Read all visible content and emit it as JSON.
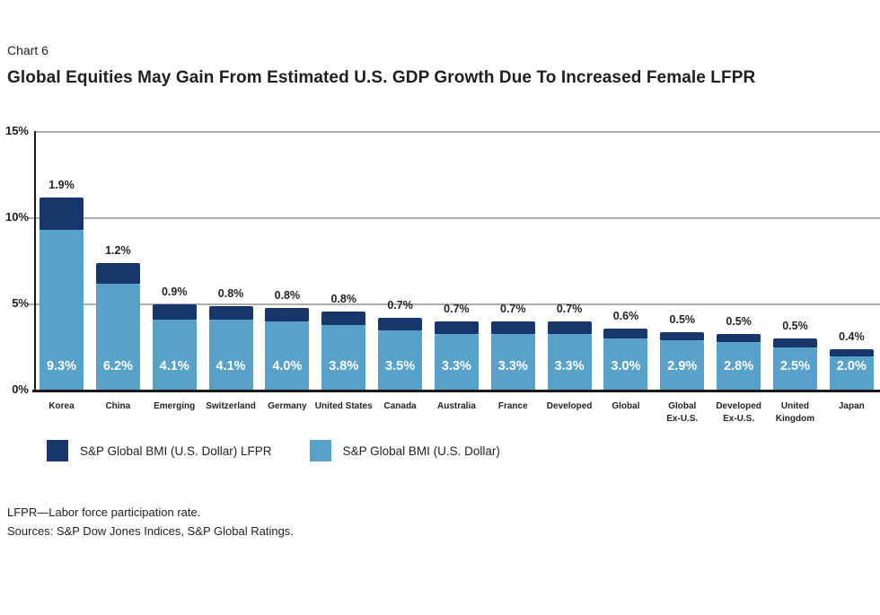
{
  "header": {
    "chart_label": "Chart 6",
    "title": "Global Equities May Gain From Estimated U.S. GDP Growth Due To Increased Female LFPR"
  },
  "chart_data": {
    "type": "bar",
    "stacked": true,
    "title": "Global Equities May Gain From Estimated U.S. GDP Growth Due To Increased Female LFPR",
    "categories": [
      "Korea",
      "China",
      "Emerging",
      "Switzerland",
      "Germany",
      "United States",
      "Canada",
      "Australia",
      "France",
      "Developed",
      "Global",
      "Global Ex-U.S.",
      "Developed Ex-U.S.",
      "United Kingdom",
      "Japan"
    ],
    "category_labels": [
      "Korea",
      "China",
      "Emerging",
      "Switzerland",
      "Germany",
      "United States",
      "Canada",
      "Australia",
      "France",
      "Developed",
      "Global",
      "Global\nEx-U.S.",
      "Developed\nEx-U.S.",
      "United\nKingdom",
      "Japan"
    ],
    "series": [
      {
        "name": "S&P Global BMI (U.S. Dollar)",
        "color": "#58A1C8",
        "values": [
          9.3,
          6.2,
          4.1,
          4.1,
          4.0,
          3.8,
          3.5,
          3.3,
          3.3,
          3.3,
          3.0,
          2.9,
          2.8,
          2.5,
          2.0
        ]
      },
      {
        "name": "S&P Global BMI (U.S. Dollar) LFPR",
        "color": "#17376B",
        "values": [
          1.9,
          1.2,
          0.9,
          0.8,
          0.8,
          0.8,
          0.7,
          0.7,
          0.7,
          0.7,
          0.6,
          0.5,
          0.5,
          0.5,
          0.4
        ]
      }
    ],
    "y_ticks": [
      "15%",
      "10%",
      "5%",
      "0%"
    ],
    "ylim": [
      0,
      15
    ],
    "grid": true,
    "legend_position": "bottom",
    "value_suffix": "%"
  },
  "legend": {
    "items": [
      {
        "label": "S&P Global BMI (U.S. Dollar) LFPR",
        "color": "#17376B"
      },
      {
        "label": "S&P Global BMI (U.S. Dollar)",
        "color": "#58A1C8"
      }
    ]
  },
  "footnotes": [
    "LFPR—Labor force participation rate.",
    "Sources: S&P Dow Jones Indices, S&P Global Ratings."
  ],
  "colors": {
    "dark_blue": "#17376B",
    "light_blue": "#58A1C8",
    "gridline": "#ADADAD",
    "axis": "#1A1A1A"
  }
}
